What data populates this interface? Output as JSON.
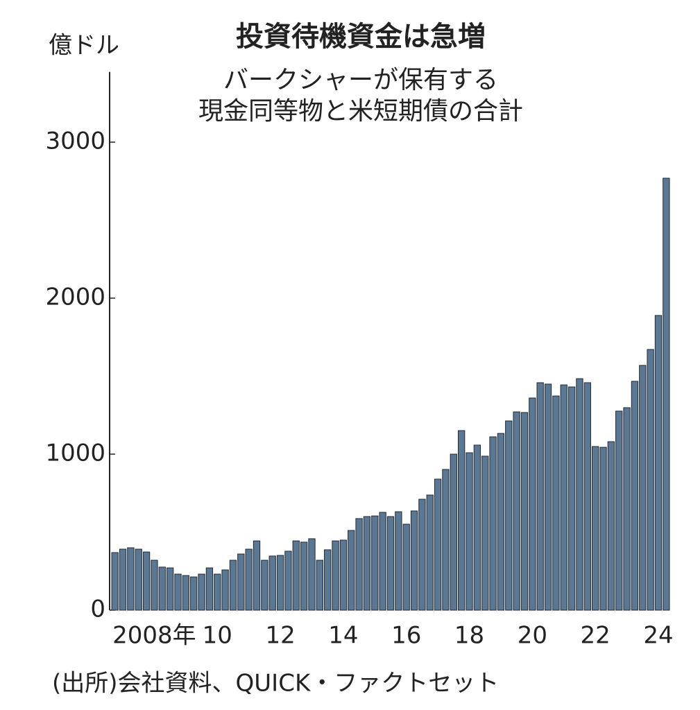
{
  "chart_data": {
    "type": "bar",
    "title": "投資待機資金は急増",
    "subtitle": [
      "バークシャーが保有する",
      "現金同等物と米短期債の合計"
    ],
    "y_label": "億ドル",
    "source": "(出所)会社資料、QUICK・ファクトセット",
    "color": "#5b7791",
    "categories": [
      null,
      null,
      null,
      null,
      null,
      "2008年",
      null,
      null,
      null,
      null,
      null,
      null,
      null,
      "10",
      null,
      null,
      null,
      null,
      null,
      null,
      null,
      "12",
      null,
      null,
      null,
      null,
      null,
      null,
      null,
      "14",
      null,
      null,
      null,
      null,
      null,
      null,
      null,
      "16",
      null,
      null,
      null,
      null,
      null,
      null,
      null,
      "18",
      null,
      null,
      null,
      null,
      null,
      null,
      null,
      "20",
      null,
      null,
      null,
      null,
      null,
      null,
      null,
      "22",
      null,
      null,
      null,
      null,
      null,
      null,
      null,
      "24",
      null
    ],
    "values": [
      369,
      391,
      400,
      391,
      373,
      320,
      276,
      271,
      231,
      222,
      213,
      231,
      271,
      231,
      258,
      320,
      360,
      391,
      444,
      320,
      347,
      351,
      378,
      444,
      436,
      458,
      320,
      387,
      444,
      449,
      511,
      587,
      600,
      604,
      627,
      600,
      631,
      551,
      636,
      711,
      738,
      840,
      902,
      1000,
      1151,
      1009,
      1058,
      987,
      1111,
      1133,
      1213,
      1271,
      1267,
      1360,
      1458,
      1449,
      1373,
      1444,
      1431,
      1484,
      1458,
      1049,
      1044,
      1080,
      1276,
      1298,
      1467,
      1569,
      1671,
      1889,
      2769
    ],
    "ylim": [
      0,
      3450
    ],
    "yticks": [
      0,
      1000,
      2000,
      3000
    ]
  }
}
